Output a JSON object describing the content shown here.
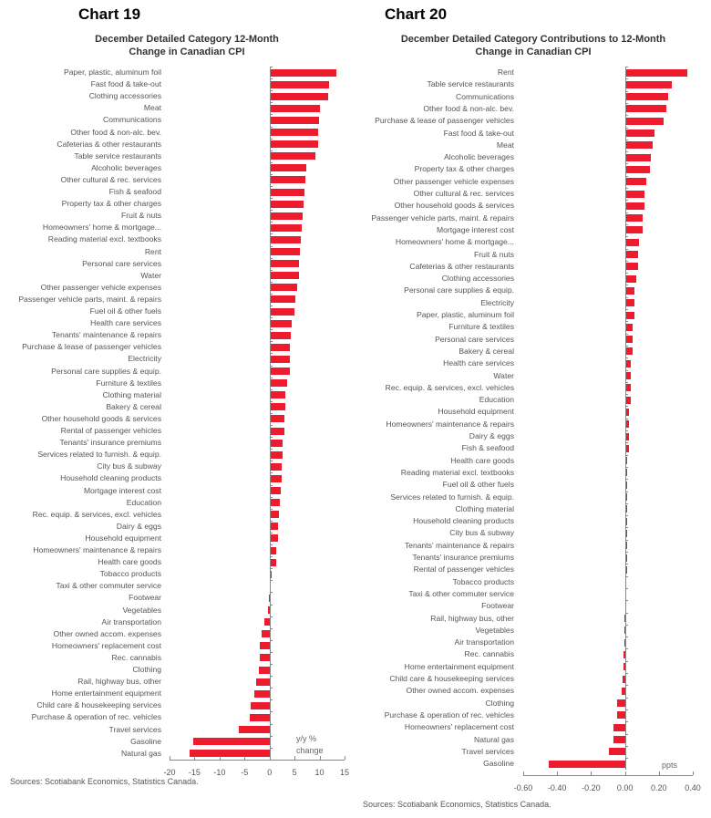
{
  "chart19": {
    "label": "Chart 19",
    "title_line1": "December Detailed Category 12-Month",
    "title_line2": "Change in Canadian CPI",
    "unit_line1": "y/y %",
    "unit_line2": "change",
    "source": "Sources: Scotiabank Economics, Statistics Canada."
  },
  "chart20": {
    "label": "Chart 20",
    "title_line1": "December Detailed Category Contributions to 12-Month",
    "title_line2": "Change in Canadian CPI",
    "unit_line1": "ppts",
    "source": "Sources: Scotiabank Economics, Statistics Canada."
  },
  "colors": {
    "bar": "#ec1c2e",
    "axis": "#888888",
    "text": "#555555"
  },
  "chart_data": [
    {
      "type": "bar",
      "orientation": "horizontal",
      "title": "December Detailed Category 12-Month Change in Canadian CPI",
      "xlabel": "y/y % change",
      "ylabel": "",
      "xlim": [
        -20,
        15
      ],
      "xticks": [
        "-20",
        "-15",
        "-10",
        "-5",
        "0",
        "5",
        "10",
        "15"
      ],
      "grid": false,
      "legend": null,
      "categories": [
        "Paper, plastic, aluminum foil",
        "Fast food & take-out",
        "Clothing accessories",
        "Meat",
        "Communications",
        "Other food & non-alc. bev.",
        "Cafeterias & other restaurants",
        "Table service restaurants",
        "Alcoholic beverages",
        "Other cultural & rec. services",
        "Fish & seafood",
        "Property tax & other charges",
        "Fruit & nuts",
        "Homeowners' home & mortgage...",
        "Reading material excl. textbooks",
        "Rent",
        "Personal care services",
        "Water",
        "Other passenger vehicle expenses",
        "Passenger vehicle parts, maint. & repairs",
        "Fuel oil & other fuels",
        "Health care services",
        "Tenants' maintenance & repairs",
        "Purchase & lease of passenger vehicles",
        "Electricity",
        "Personal care supplies & equip.",
        "Furniture & textiles",
        "Clothing material",
        "Bakery & cereal",
        "Other household goods & services",
        "Rental of passenger vehicles",
        "Tenants' insurance premiums",
        "Services related to furnish. & equip.",
        "City bus & subway",
        "Household cleaning products",
        "Mortgage interest cost",
        "Education",
        "Rec. equip. & services, excl. vehicles",
        "Dairy & eggs",
        "Household equipment",
        "Homeowners' maintenance & repairs",
        "Health care goods",
        "Tobacco products",
        "Taxi & other commuter service",
        "Footwear",
        "Vegetables",
        "Air transportation",
        "Other owned accom. expenses",
        "Homeowners' replacement cost",
        "Rec. cannabis",
        "Clothing",
        "Rail, highway bus, other",
        "Home entertainment equipment",
        "Child care & housekeeping services",
        "Purchase & operation of rec. vehicles",
        "Travel services",
        "Gasoline",
        "Natural gas"
      ],
      "values": [
        13.1,
        11.8,
        11.5,
        9.9,
        9.8,
        9.5,
        9.5,
        9.0,
        7.1,
        7.0,
        6.8,
        6.7,
        6.4,
        6.3,
        6.0,
        5.8,
        5.7,
        5.7,
        5.3,
        4.9,
        4.8,
        4.3,
        4.1,
        3.8,
        3.8,
        3.8,
        3.3,
        3.0,
        2.9,
        2.8,
        2.7,
        2.5,
        2.4,
        2.3,
        2.2,
        2.1,
        1.9,
        1.7,
        1.5,
        1.5,
        1.2,
        1.1,
        0.1,
        0.0,
        -0.2,
        -0.3,
        -1.0,
        -1.6,
        -1.9,
        -2.0,
        -2.2,
        -2.7,
        -3.0,
        -3.7,
        -3.9,
        -6.1,
        -15.2,
        -16.0
      ]
    },
    {
      "type": "bar",
      "orientation": "horizontal",
      "title": "December Detailed Category Contributions to 12-Month Change in Canadian CPI",
      "xlabel": "ppts",
      "ylabel": "",
      "xlim": [
        -0.6,
        0.4
      ],
      "xticks": [
        "-0.60",
        "-0.40",
        "-0.20",
        "0.00",
        "0.20",
        "0.40"
      ],
      "grid": false,
      "legend": null,
      "categories": [
        "Rent",
        "Table service restaurants",
        "Communications",
        "Other food & non-alc. bev.",
        "Purchase & lease of passenger vehicles",
        "Fast food & take-out",
        "Meat",
        "Alcoholic beverages",
        "Property tax & other charges",
        "Other passenger vehicle expenses",
        "Other cultural & rec. services",
        "Other household goods & services",
        "Passenger vehicle parts, maint. & repairs",
        "Mortgage interest cost",
        "Homeowners' home & mortgage...",
        "Fruit & nuts",
        "Cafeterias & other restaurants",
        "Clothing accessories",
        "Personal care supplies & equip.",
        "Electricity",
        "Paper, plastic, aluminum foil",
        "Furniture & textiles",
        "Personal care services",
        "Bakery & cereal",
        "Health care services",
        "Water",
        "Rec. equip. & services, excl. vehicles",
        "Education",
        "Household equipment",
        "Homeowners' maintenance & repairs",
        "Dairy & eggs",
        "Fish & seafood",
        "Health care goods",
        "Reading material excl. textbooks",
        "Fuel oil & other fuels",
        "Services related to furnish. & equip.",
        "Clothing material",
        "Household cleaning products",
        "City bus & subway",
        "Tenants' maintenance & repairs",
        "Tenants' insurance premiums",
        "Rental of passenger vehicles",
        "Tobacco products",
        "Taxi & other commuter service",
        "Footwear",
        "Rail, highway bus, other",
        "Vegetables",
        "Air transportation",
        "Rec. cannabis",
        "Home entertainment equipment",
        "Child care & housekeeping services",
        "Other owned accom. expenses",
        "Clothing",
        "Purchase & operation of rec. vehicles",
        "Homeowners' replacement cost",
        "Natural gas",
        "Travel services",
        "Gasoline"
      ],
      "values": [
        0.36,
        0.27,
        0.25,
        0.24,
        0.22,
        0.17,
        0.16,
        0.15,
        0.14,
        0.12,
        0.11,
        0.11,
        0.1,
        0.1,
        0.08,
        0.07,
        0.07,
        0.06,
        0.05,
        0.05,
        0.05,
        0.04,
        0.04,
        0.04,
        0.03,
        0.03,
        0.03,
        0.03,
        0.02,
        0.02,
        0.02,
        0.02,
        0.01,
        0.01,
        0.01,
        0.01,
        0.01,
        0.01,
        0.005,
        0.003,
        0.002,
        0.001,
        0.0,
        0.0,
        0.0,
        -0.002,
        -0.002,
        -0.005,
        -0.006,
        -0.009,
        -0.015,
        -0.02,
        -0.045,
        -0.045,
        -0.07,
        -0.07,
        -0.095,
        -0.45
      ]
    }
  ]
}
